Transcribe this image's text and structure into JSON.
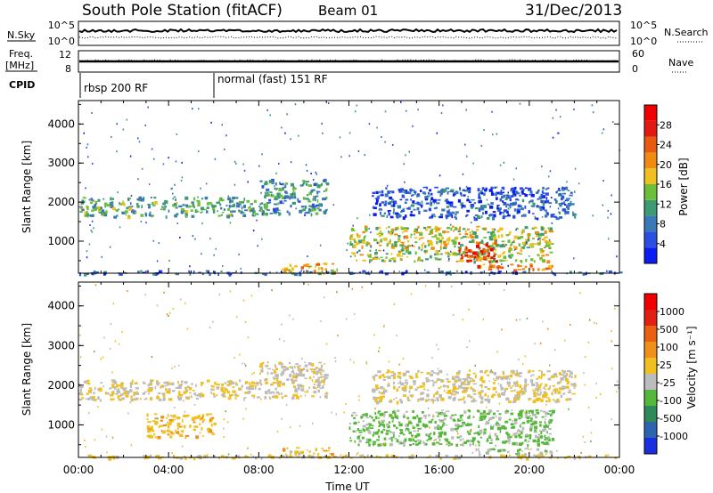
{
  "header": {
    "station": "South Pole Station (fitACF)",
    "beam": "Beam 01",
    "date": "31/Dec/2013"
  },
  "panels_top": {
    "nsky_label": "N.Sky",
    "nsky_ticks": [
      "10^5",
      "10^0"
    ],
    "nsearch_label": "N.Search",
    "nsearch_ticks": [
      "10^5",
      "10^0"
    ],
    "freq_label_1": "Freq.",
    "freq_label_2": "[MHz]",
    "freq_ticks": [
      "12",
      "8"
    ],
    "nave_label": "Nave",
    "nave_ticks": [
      "60",
      "0"
    ],
    "cpid_label": "CPID",
    "cpid_segments": [
      {
        "label": "rbsp 200 RF",
        "start_hour": 0
      },
      {
        "label": "normal (fast) 151 RF",
        "start_hour": 6
      }
    ]
  },
  "chart_data": [
    {
      "type": "heatmap",
      "name": "power",
      "ylabel": "Slant Range [km]",
      "yticks": [
        "1000",
        "2000",
        "3000",
        "4000"
      ],
      "ylim": [
        180,
        4600
      ],
      "xlim": [
        0,
        24
      ],
      "colorbar": {
        "label": "Power [dB]",
        "ticks": [
          "4",
          "8",
          "12",
          "16",
          "20",
          "24",
          "28"
        ],
        "range": [
          0,
          32
        ],
        "colors": [
          "#0a1cf0",
          "#2a4fe0",
          "#3a78b8",
          "#3d9a72",
          "#6bbf3a",
          "#f0c020",
          "#f08a10",
          "#e85a10",
          "#e01a10",
          "#f00000"
        ]
      },
      "features": [
        {
          "kind": "band",
          "h0": 0,
          "h1": 8,
          "r_low": 1650,
          "r_high": 2150,
          "level": 12
        },
        {
          "kind": "band",
          "h0": 8,
          "h1": 11,
          "r_low": 1700,
          "r_high": 2600,
          "level": 10
        },
        {
          "kind": "band",
          "h0": 13,
          "h1": 22,
          "r_low": 1600,
          "r_high": 2400,
          "level": 6
        },
        {
          "kind": "band",
          "h0": 12,
          "h1": 21,
          "r_low": 500,
          "r_high": 1400,
          "level": 16
        },
        {
          "kind": "spot",
          "h0": 16.8,
          "h1": 18.5,
          "r_low": 500,
          "r_high": 1000,
          "level": 26
        },
        {
          "kind": "band",
          "h0": 17.5,
          "h1": 21,
          "r_low": 280,
          "r_high": 430,
          "level": 22
        },
        {
          "kind": "band",
          "h0": 9,
          "h1": 11.5,
          "r_low": 200,
          "r_high": 450,
          "level": 20
        },
        {
          "kind": "band",
          "h0": 0,
          "h1": 24,
          "r_low": 180,
          "r_high": 260,
          "level": 6
        }
      ]
    },
    {
      "type": "heatmap",
      "name": "velocity",
      "xlabel": "Time UT",
      "ylabel": "Slant Range [km]",
      "yticks": [
        "1000",
        "2000",
        "3000",
        "4000"
      ],
      "xticks": [
        "00:00",
        "04:00",
        "08:00",
        "12:00",
        "16:00",
        "20:00",
        "00:00"
      ],
      "ylim": [
        180,
        4600
      ],
      "xlim": [
        0,
        24
      ],
      "colorbar": {
        "label": "Velocity [m s⁻¹]",
        "ticks": [
          "1000",
          "500",
          "100",
          "25",
          "-25",
          "-100",
          "-500",
          "-1000"
        ],
        "range": [
          -1200,
          1200
        ],
        "colors": [
          "#1a30e0",
          "#2c64b0",
          "#2f8a5a",
          "#55b83a",
          "#bcbcbc",
          "#f0c020",
          "#f0901a",
          "#e86010",
          "#e02010",
          "#f00000"
        ]
      },
      "features": [
        {
          "kind": "band",
          "h0": 0,
          "h1": 8,
          "r_low": 1650,
          "r_high": 2150,
          "level": 0
        },
        {
          "kind": "band",
          "h0": 8,
          "h1": 11,
          "r_low": 1700,
          "r_high": 2600,
          "level": -40
        },
        {
          "kind": "band",
          "h0": 13,
          "h1": 22,
          "r_low": 1600,
          "r_high": 2400,
          "level": 0
        },
        {
          "kind": "band",
          "h0": 12,
          "h1": 21,
          "r_low": 500,
          "r_high": 1400,
          "level": -300
        },
        {
          "kind": "band",
          "h0": 3,
          "h1": 6,
          "r_low": 700,
          "r_high": 1300,
          "level": 150
        },
        {
          "kind": "band",
          "h0": 17.5,
          "h1": 21,
          "r_low": 280,
          "r_high": 430,
          "level": -250
        },
        {
          "kind": "band",
          "h0": 9,
          "h1": 11.5,
          "r_low": 200,
          "r_high": 450,
          "level": 120
        },
        {
          "kind": "band",
          "h0": 0,
          "h1": 24,
          "r_low": 180,
          "r_high": 260,
          "level": 60
        }
      ]
    }
  ]
}
